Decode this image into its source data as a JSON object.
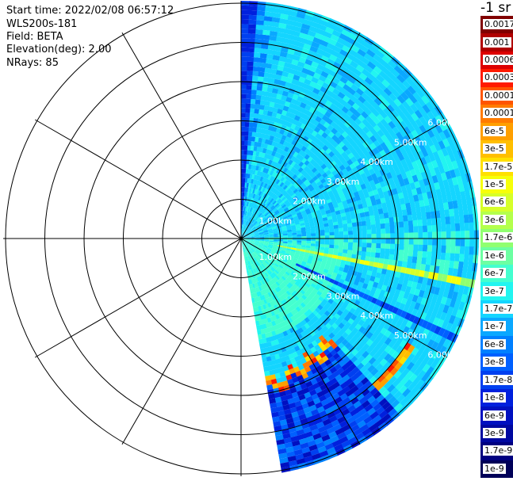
{
  "info": {
    "start_time": "Start time: 2022/02/08 06:57:12",
    "instrument": "WLS200s-181",
    "field": "Field: BETA",
    "elevation": "Elevation(deg): 2.00",
    "nrays": "NRays: 85"
  },
  "colorbar": {
    "unit_label": "-1 sr",
    "levels": [
      {
        "label": "0.0017",
        "color": "#800000"
      },
      {
        "label": "0.001",
        "color": "#b00000"
      },
      {
        "label": "0.0006",
        "color": "#dd0000"
      },
      {
        "label": "0.0003",
        "color": "#ff1a00"
      },
      {
        "label": "0.00017",
        "color": "#ff5500"
      },
      {
        "label": "0.0001",
        "color": "#ff7b00"
      },
      {
        "label": "6e-5",
        "color": "#ff9f00"
      },
      {
        "label": "3e-5",
        "color": "#ffbf00"
      },
      {
        "label": "1.7e-5",
        "color": "#ffe000"
      },
      {
        "label": "1e-5",
        "color": "#f6ff0a"
      },
      {
        "label": "6e-6",
        "color": "#d6ff2a"
      },
      {
        "label": "3e-6",
        "color": "#b4ff4c"
      },
      {
        "label": "1.7e-6",
        "color": "#90ff70"
      },
      {
        "label": "1e-6",
        "color": "#6cffa2"
      },
      {
        "label": "6e-7",
        "color": "#44ffcf"
      },
      {
        "label": "3e-7",
        "color": "#22f5f0"
      },
      {
        "label": "1.7e-7",
        "color": "#14d5ff"
      },
      {
        "label": "1e-7",
        "color": "#0aa8ff"
      },
      {
        "label": "6e-8",
        "color": "#0080ff"
      },
      {
        "label": "3e-8",
        "color": "#0060ff"
      },
      {
        "label": "1.7e-8",
        "color": "#0040f0"
      },
      {
        "label": "1e-8",
        "color": "#0020dd"
      },
      {
        "label": "6e-9",
        "color": "#0010c0"
      },
      {
        "label": "3e-9",
        "color": "#0008a0"
      },
      {
        "label": "1.7e-9",
        "color": "#000080"
      },
      {
        "label": "1e-9",
        "color": "#000058"
      }
    ]
  },
  "chart_data": {
    "type": "heatmap",
    "projection": "polar (PPI)",
    "field": "BETA",
    "elevation_deg": 2.0,
    "nrays": 85,
    "azimuth_range_deg": [
      0,
      170
    ],
    "max_range_km": 6.0,
    "range_ring_labels": [
      "1.00km",
      "2.00km",
      "3.00km",
      "4.00km",
      "5.00km",
      "6.00km"
    ],
    "background_level": "1.7e-7",
    "features": [
      {
        "desc": "near-field band 0-2.5 km",
        "level": "6e-7"
      },
      {
        "desc": "high backscatter streak along ~100 deg",
        "level": "1e-5 to 6e-6",
        "range_km": [
          1.0,
          6.0
        ]
      },
      {
        "desc": "strong layer boundary near southern edge",
        "level": "0.0003 to 3e-5",
        "range_km": [
          3.6,
          5.2
        ]
      },
      {
        "desc": "low-signal region beyond boundary",
        "level": "1e-8 to 3e-9"
      }
    ]
  }
}
